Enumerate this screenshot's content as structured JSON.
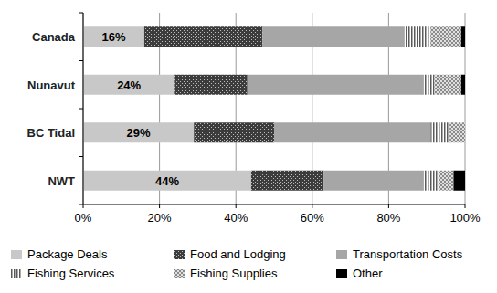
{
  "chart_data": {
    "type": "bar",
    "orientation": "horizontal",
    "stacked": true,
    "grid": true,
    "legend": "bottom",
    "data_labels": true,
    "categories": [
      "Canada",
      "Nunavut",
      "BC Tidal",
      "NWT"
    ],
    "xlim": [
      0,
      100
    ],
    "xticks": [
      {
        "value": 0,
        "label": "0%"
      },
      {
        "value": 20,
        "label": "20%"
      },
      {
        "value": 40,
        "label": "40%"
      },
      {
        "value": 60,
        "label": "60%"
      },
      {
        "value": 80,
        "label": "80%"
      },
      {
        "value": 100,
        "label": "100%"
      }
    ],
    "series": [
      {
        "name": "Package Deals",
        "color": "#c8c8c8",
        "values": [
          16,
          24,
          29,
          44
        ],
        "value_labels": [
          "16%",
          "24%",
          "29%",
          "44%"
        ]
      },
      {
        "name": "Food and Lodging",
        "color": "#3c3c3c",
        "values": [
          31,
          19,
          21,
          19
        ]
      },
      {
        "name": "Transportation Costs",
        "color": "#a6a6a6",
        "values": [
          37,
          46,
          41,
          26
        ]
      },
      {
        "name": "Fishing Services",
        "color": "#5a5a5a",
        "values": [
          7,
          3,
          5,
          4
        ]
      },
      {
        "name": "Fishing Supplies",
        "color": "#8a8a8a",
        "values": [
          8,
          7,
          4,
          4
        ]
      },
      {
        "name": "Other",
        "color": "#000000",
        "values": [
          1,
          1,
          0,
          3
        ]
      }
    ]
  }
}
